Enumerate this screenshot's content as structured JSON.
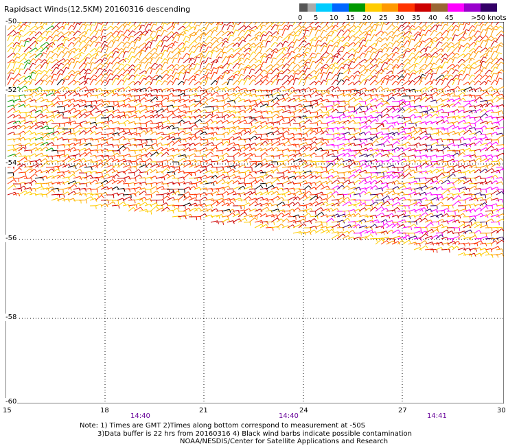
{
  "title": "Rapidsact Winds(12.5KM) 20160316 descending",
  "legend": {
    "labels": [
      "0",
      "5",
      "10",
      "15",
      "20",
      "25",
      "30",
      "35",
      "40",
      "45",
      ">50 knots"
    ],
    "colors": [
      "#555555",
      "#aaaaaa",
      "#00ccff",
      "#0066ff",
      "#009900",
      "#ffcc00",
      "#ff9900",
      "#ff3300",
      "#cc0000",
      "#996633",
      "#ff00ff",
      "#9900cc",
      "#330066"
    ]
  },
  "map": {
    "lat_labels": [
      "-50",
      "-52",
      "-54",
      "-56",
      "-58",
      "-60"
    ],
    "lon_labels": [
      "15",
      "18",
      "21",
      "24",
      "27",
      "30"
    ],
    "time_labels": [
      "14:40",
      "14:40",
      "14:41"
    ]
  },
  "notes": {
    "line1": "Note: 1) Times are GMT 2)Times along bottom correspond to measurement at -50S",
    "line2": "3)Data buffer is 22 hrs from 20160316 4) Black wind barbs indicate possible contamination",
    "line3": "NOAA/NESDIS/Center for Satellite Applications and Research"
  }
}
